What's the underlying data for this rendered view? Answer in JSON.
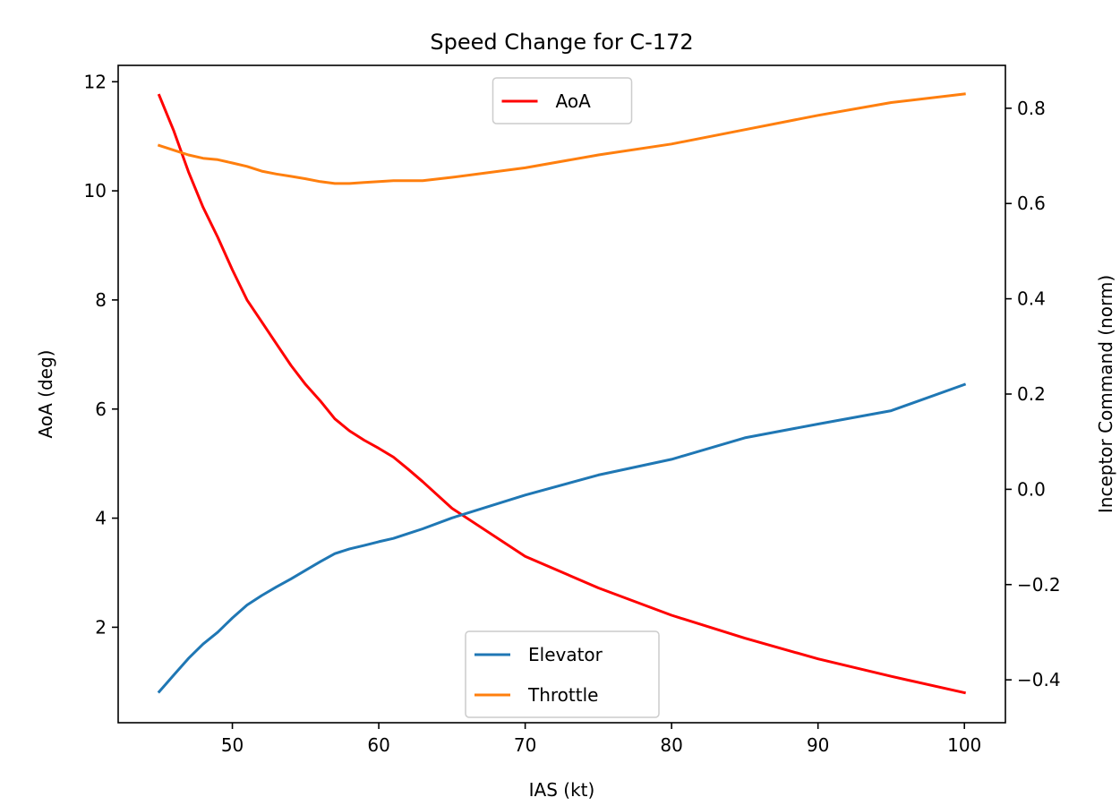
{
  "chart_data": {
    "type": "line",
    "title": "Speed Change for C-172",
    "xlabel": "IAS (kt)",
    "ylabel": "AoA (deg)",
    "y2label": "Inceptor Command (norm)",
    "xlim": [
      42.2,
      102.8
    ],
    "ylim": [
      0.25,
      12.3
    ],
    "y2lim": [
      -0.49,
      0.89
    ],
    "xticks": [
      50,
      60,
      70,
      80,
      90,
      100
    ],
    "yticks": [
      2,
      4,
      6,
      8,
      10,
      12
    ],
    "y2ticks": [
      -0.4,
      -0.2,
      0.0,
      0.2,
      0.4,
      0.6,
      0.8
    ],
    "y2tick_labels": [
      "−0.4",
      "−0.2",
      "0.0",
      "0.2",
      "0.4",
      "0.6",
      "0.8"
    ],
    "grid": false,
    "left_legend": {
      "placement": "upper center",
      "entries": [
        "AoA"
      ]
    },
    "right_legend": {
      "placement": "lower center",
      "entries": [
        "Elevator",
        "Throttle"
      ]
    },
    "series": [
      {
        "name": "AoA",
        "axis": "left",
        "color": "#ff0000",
        "x": [
          45,
          46,
          47,
          48,
          49,
          50,
          51,
          52,
          53,
          54,
          55,
          56,
          57,
          58,
          59,
          60,
          61,
          62,
          63,
          65,
          70,
          75,
          80,
          85,
          90,
          95,
          100
        ],
        "y": [
          11.75,
          11.1,
          10.35,
          9.7,
          9.15,
          8.55,
          8.0,
          7.6,
          7.2,
          6.8,
          6.45,
          6.15,
          5.82,
          5.6,
          5.43,
          5.28,
          5.12,
          4.9,
          4.67,
          4.18,
          3.3,
          2.72,
          2.22,
          1.8,
          1.42,
          1.1,
          0.8
        ]
      },
      {
        "name": "Elevator",
        "axis": "right",
        "color": "#1f77b4",
        "x": [
          45,
          46,
          47,
          48,
          49,
          50,
          51,
          52,
          53,
          54,
          55,
          56,
          57,
          58,
          59,
          60,
          61,
          62,
          63,
          65,
          70,
          75,
          80,
          85,
          90,
          95,
          100
        ],
        "y": [
          -0.425,
          -0.39,
          -0.355,
          -0.325,
          -0.3,
          -0.27,
          -0.243,
          -0.223,
          -0.205,
          -0.188,
          -0.17,
          -0.152,
          -0.135,
          -0.125,
          -0.118,
          -0.11,
          -0.103,
          -0.093,
          -0.083,
          -0.06,
          -0.012,
          0.03,
          0.063,
          0.108,
          0.137,
          0.165,
          0.22
        ]
      },
      {
        "name": "Throttle",
        "axis": "right",
        "color": "#ff7f0e",
        "x": [
          45,
          46,
          47,
          48,
          49,
          50,
          51,
          52,
          53,
          54,
          55,
          56,
          57,
          58,
          59,
          60,
          61,
          62,
          63,
          65,
          70,
          75,
          80,
          85,
          90,
          95,
          100
        ],
        "y": [
          0.722,
          0.712,
          0.702,
          0.695,
          0.692,
          0.685,
          0.678,
          0.668,
          0.662,
          0.657,
          0.652,
          0.646,
          0.642,
          0.642,
          0.644,
          0.646,
          0.648,
          0.648,
          0.648,
          0.655,
          0.675,
          0.702,
          0.725,
          0.755,
          0.785,
          0.812,
          0.83
        ]
      }
    ]
  }
}
